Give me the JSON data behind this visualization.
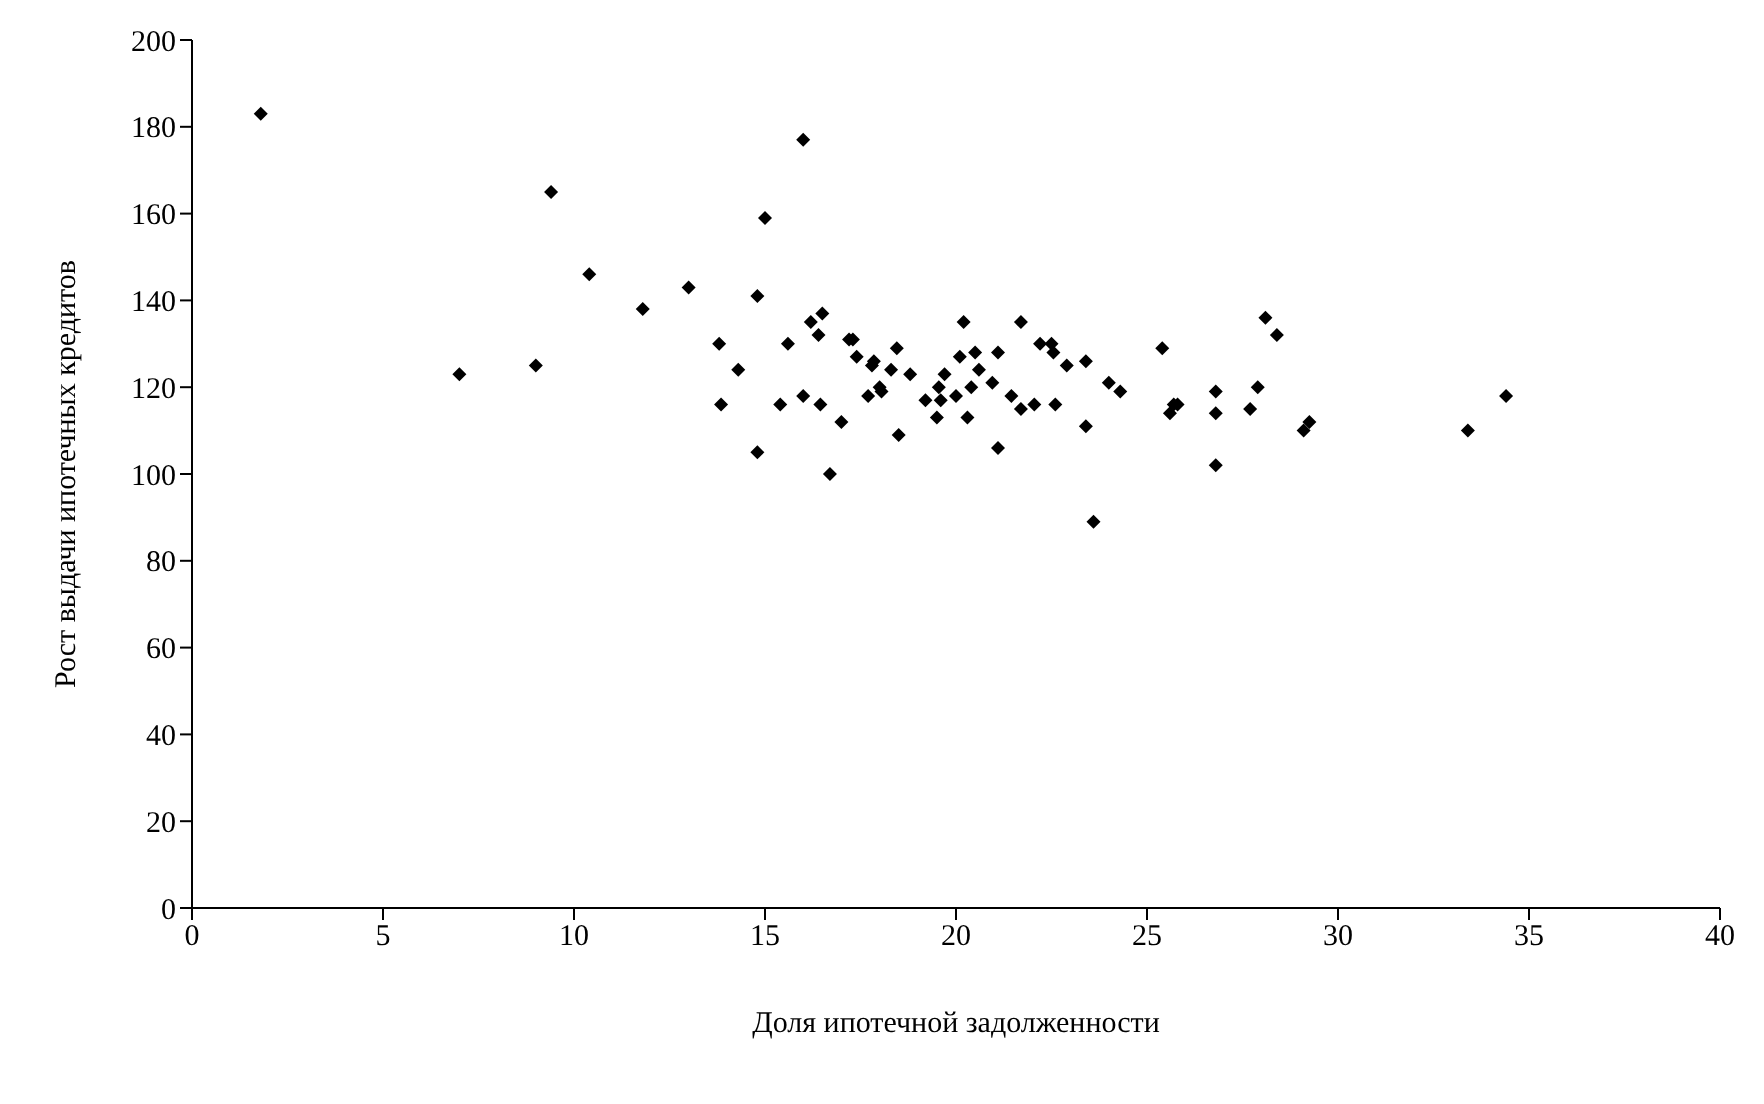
{
  "chart_data": {
    "type": "scatter",
    "xlabel": "Доля ипотечной задолженности",
    "ylabel": "Рост выдачи ипотечных кредитов",
    "xlim": [
      0,
      40
    ],
    "xticks": [
      0,
      5,
      10,
      15,
      20,
      25,
      30,
      35,
      40
    ],
    "ylim": [
      0,
      200
    ],
    "yticks": [
      0,
      20,
      40,
      60,
      80,
      100,
      120,
      140,
      160,
      180,
      200
    ],
    "grid": false,
    "legend": false,
    "marker": "diamond",
    "series": [
      {
        "color": "#000000",
        "x": [
          1.8,
          7.0,
          9.0,
          9.4,
          10.4,
          11.8,
          13.0,
          13.8,
          14.3,
          13.85,
          15.0,
          14.8,
          14.8,
          15.6,
          15.4,
          16.0,
          16.0,
          16.2,
          16.5,
          16.4,
          16.45,
          16.7,
          17.0,
          17.2,
          17.3,
          17.4,
          17.7,
          17.8,
          17.85,
          18.0,
          18.05,
          18.3,
          18.45,
          18.5,
          18.8,
          19.2,
          19.5,
          19.55,
          19.6,
          19.7,
          20.0,
          20.1,
          20.2,
          20.3,
          20.4,
          20.5,
          20.6,
          20.95,
          21.1,
          21.1,
          21.45,
          21.7,
          21.7,
          22.05,
          22.2,
          22.5,
          22.55,
          22.6,
          22.9,
          23.4,
          23.4,
          23.6,
          24.0,
          24.3,
          25.4,
          25.6,
          25.7,
          25.8,
          26.8,
          26.8,
          26.8,
          28.1,
          28.4,
          27.9,
          27.7,
          29.25,
          29.1,
          33.4,
          34.4
        ],
        "values": [
          183,
          123,
          125,
          165,
          146,
          138,
          143,
          130,
          124,
          116,
          159,
          141,
          105,
          130,
          116,
          118,
          177,
          135,
          137,
          132,
          116,
          100,
          112,
          131,
          131,
          127,
          118,
          125,
          126,
          120,
          119,
          124,
          129,
          109,
          123,
          117,
          113,
          120,
          117,
          123,
          118,
          127,
          135,
          113,
          120,
          128,
          124,
          121,
          128,
          106,
          118,
          115,
          135,
          116,
          130,
          130,
          128,
          116,
          125,
          126,
          111,
          89,
          121,
          119,
          129,
          114,
          116,
          116,
          119,
          114,
          102,
          136,
          132,
          120,
          115,
          112,
          110,
          110,
          118
        ]
      }
    ]
  }
}
